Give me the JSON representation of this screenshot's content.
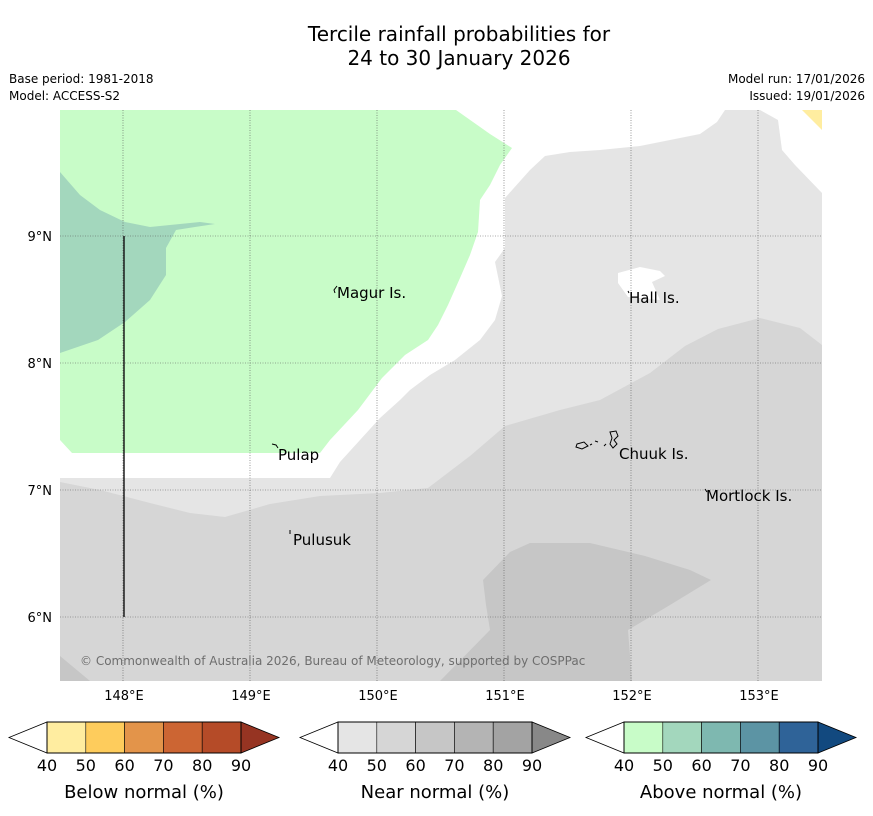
{
  "title": {
    "line1": "Tercile rainfall probabilities for",
    "line2": "24 to 30 January 2026"
  },
  "meta": {
    "base_period": "Base period: 1981-2018",
    "model": "Model: ACCESS-S2",
    "model_run": "Model run: 17/01/2026",
    "issued": "Issued: 19/01/2026"
  },
  "map": {
    "lat_labels": [
      "9°N",
      "8°N",
      "7°N",
      "6°N"
    ],
    "lon_labels": [
      "148°E",
      "149°E",
      "150°E",
      "151°E",
      "152°E",
      "153°E"
    ],
    "places": [
      "Magur Is.",
      "Hall Is.",
      "Pulap",
      "Chuuk Is.",
      "Mortlock Is.",
      "Pulusuk"
    ],
    "copyright": "© Commonwealth of Australia 2026, Bureau of Meteorology, supported by COSPPac"
  },
  "colorbars": [
    {
      "label": "Below normal (%)",
      "ticks": [
        "40",
        "50",
        "60",
        "70",
        "80",
        "90"
      ],
      "colors": [
        "#ffffff",
        "#ffeda0",
        "#fecc5c",
        "#e3944a",
        "#cc6533",
        "#b54b28",
        "#963422"
      ]
    },
    {
      "label": "Near normal (%)",
      "ticks": [
        "40",
        "50",
        "60",
        "70",
        "80",
        "90"
      ],
      "colors": [
        "#ffffff",
        "#e5e5e5",
        "#d6d6d6",
        "#c6c6c6",
        "#b4b4b4",
        "#a3a3a3",
        "#888888"
      ]
    },
    {
      "label": "Above normal (%)",
      "ticks": [
        "40",
        "50",
        "60",
        "70",
        "80",
        "90"
      ],
      "colors": [
        "#ffffff",
        "#c8fcc8",
        "#a3d7bd",
        "#7eb8b0",
        "#5c94a4",
        "#2f6398",
        "#12497f"
      ]
    }
  ]
}
